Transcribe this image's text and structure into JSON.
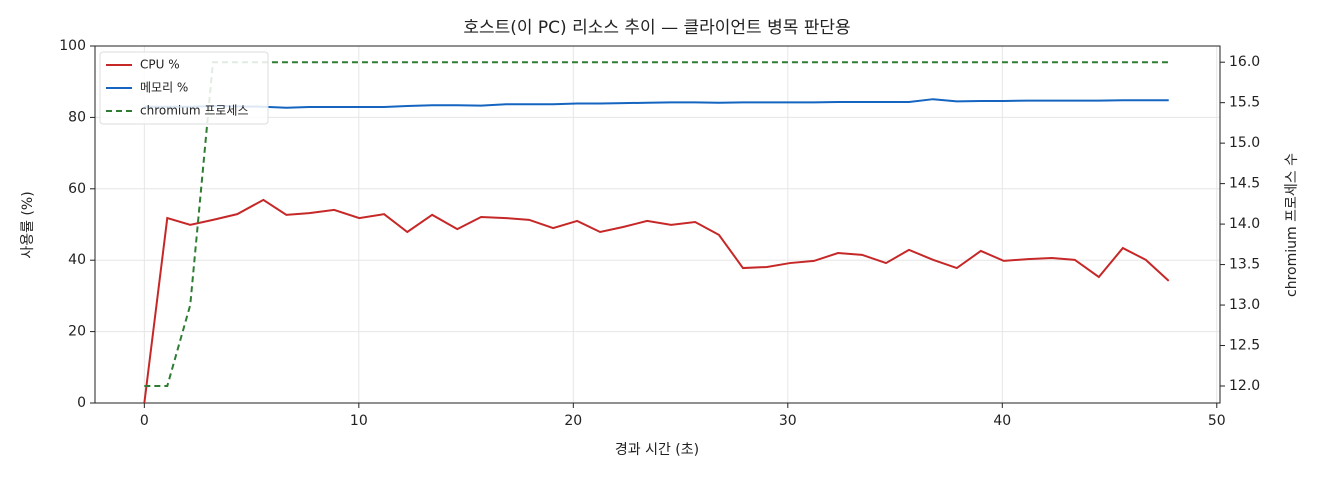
{
  "chart_data": {
    "type": "line",
    "title": "호스트(이 PC) 리소스 추이 — 클라이언트 병목 판단용",
    "x_label": "경과 시간 (초)",
    "y_label": "사용률 (%)",
    "y2_label": "chromium 프로세스 수",
    "x": [
      0,
      1.07,
      2.14,
      3.2,
      4.33,
      5.55,
      6.62,
      7.69,
      8.85,
      10.02,
      11.18,
      12.26,
      13.42,
      14.59,
      15.7,
      16.87,
      17.94,
      19.06,
      20.18,
      21.25,
      22.32,
      23.44,
      24.56,
      25.68,
      26.79,
      27.91,
      29.03,
      30.1,
      31.22,
      32.34,
      33.46,
      34.58,
      35.65,
      36.77,
      37.88,
      39.0,
      40.07,
      41.19,
      42.31,
      43.38,
      44.5,
      45.62,
      46.69,
      47.76
    ],
    "series": [
      {
        "name": "CPU %",
        "color": "#c62828",
        "values": [
          0,
          51.8,
          49.9,
          51.3,
          52.9,
          56.9,
          52.7,
          53.2,
          54.1,
          51.8,
          52.9,
          47.9,
          52.7,
          48.7,
          52.1,
          51.8,
          51.3,
          49.0,
          51.0,
          47.9,
          49.3,
          51.0,
          49.9,
          50.7,
          47.1,
          37.8,
          38.1,
          39.2,
          39.8,
          42.0,
          41.5,
          39.2,
          42.9,
          40.1,
          37.8,
          42.6,
          39.8,
          40.3,
          40.6,
          40.1,
          35.3,
          43.4,
          40.1,
          34.2
        ]
      },
      {
        "name": "메모리 %",
        "color": "#1565c0",
        "values": [
          83.0,
          83.0,
          83.0,
          83.2,
          83.1,
          83.0,
          82.7,
          82.9,
          82.9,
          82.9,
          82.9,
          83.2,
          83.4,
          83.4,
          83.3,
          83.7,
          83.7,
          83.7,
          83.9,
          83.9,
          84.0,
          84.1,
          84.2,
          84.2,
          84.1,
          84.2,
          84.2,
          84.2,
          84.2,
          84.3,
          84.3,
          84.3,
          84.3,
          85.1,
          84.5,
          84.6,
          84.6,
          84.7,
          84.7,
          84.7,
          84.7,
          84.8,
          84.8,
          84.8
        ]
      },
      {
        "name": "chromium 프로세스",
        "color": "#2e7d32",
        "axis": "y2",
        "dashed": true,
        "values": [
          12,
          12,
          13,
          16,
          16,
          16,
          16,
          16,
          16,
          16,
          16,
          16,
          16,
          16,
          16,
          16,
          16,
          16,
          16,
          16,
          16,
          16,
          16,
          16,
          16,
          16,
          16,
          16,
          16,
          16,
          16,
          16,
          16,
          16,
          16,
          16,
          16,
          16,
          16,
          16,
          16,
          16,
          16,
          16
        ]
      }
    ],
    "xlim": [
      -2.3,
      50.15
    ],
    "xticks": [
      0,
      10,
      20,
      30,
      40,
      50
    ],
    "ylim": [
      0,
      100
    ],
    "yticks": [
      0,
      20,
      40,
      60,
      80,
      100
    ],
    "y2lim": [
      11.79,
      16.2
    ],
    "y2ticks": [
      {
        "value": 12,
        "label": "12.0"
      },
      12.5,
      {
        "value": 13,
        "label": "13.0"
      },
      13.5,
      {
        "value": 14,
        "label": "14.0"
      },
      14.5,
      {
        "value": 15,
        "label": "15.0"
      },
      15.5,
      {
        "value": 16,
        "label": "16.0"
      }
    ],
    "grid": true,
    "legend": "upper-left"
  }
}
